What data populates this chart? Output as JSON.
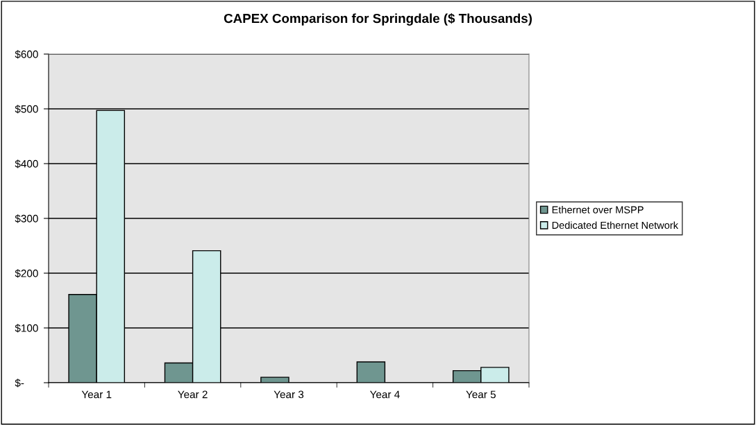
{
  "chart_data": {
    "type": "bar",
    "title": "CAPEX Comparison for Springdale ($ Thousands)",
    "categories": [
      "Year 1",
      "Year 2",
      "Year 3",
      "Year 4",
      "Year 5"
    ],
    "series": [
      {
        "name": "Ethernet over MSPP",
        "color": "#6f9690",
        "values": [
          161,
          36,
          10,
          38,
          22
        ]
      },
      {
        "name": "Dedicated Ethernet Network",
        "color": "#cbecea",
        "values": [
          497,
          241,
          null,
          null,
          28
        ]
      }
    ],
    "ylim": [
      0,
      600
    ],
    "yticks": [
      {
        "value": 0,
        "label": "$-"
      },
      {
        "value": 100,
        "label": "$100"
      },
      {
        "value": 200,
        "label": "$200"
      },
      {
        "value": 300,
        "label": "$300"
      },
      {
        "value": 400,
        "label": "$400"
      },
      {
        "value": 500,
        "label": "$500"
      },
      {
        "value": 600,
        "label": "$600"
      }
    ],
    "grid": "y",
    "legend": "right"
  }
}
